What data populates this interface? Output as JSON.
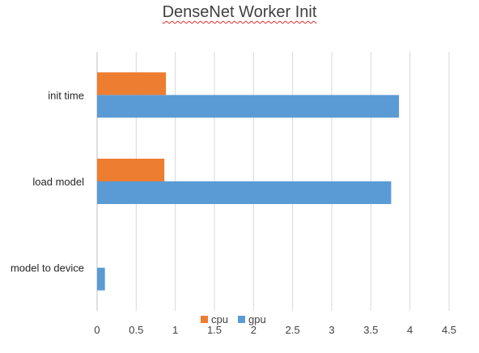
{
  "chart_data": {
    "type": "bar",
    "orientation": "horizontal",
    "title": "DenseNet Worker Init",
    "categories": [
      "init time",
      "load model",
      "model to device"
    ],
    "series": [
      {
        "name": "cpu",
        "color": "#ED7D31",
        "values": [
          0.88,
          0.86,
          0
        ]
      },
      {
        "name": "gpu",
        "color": "#5B9BD5",
        "values": [
          3.86,
          3.76,
          0.1
        ]
      }
    ],
    "xlim": [
      0,
      4.5
    ],
    "xticks": [
      0,
      0.5,
      1,
      1.5,
      2,
      2.5,
      3,
      3.5,
      4,
      4.5
    ],
    "xlabel": "",
    "ylabel": "",
    "grid": "vertical",
    "legend": "bottom"
  }
}
